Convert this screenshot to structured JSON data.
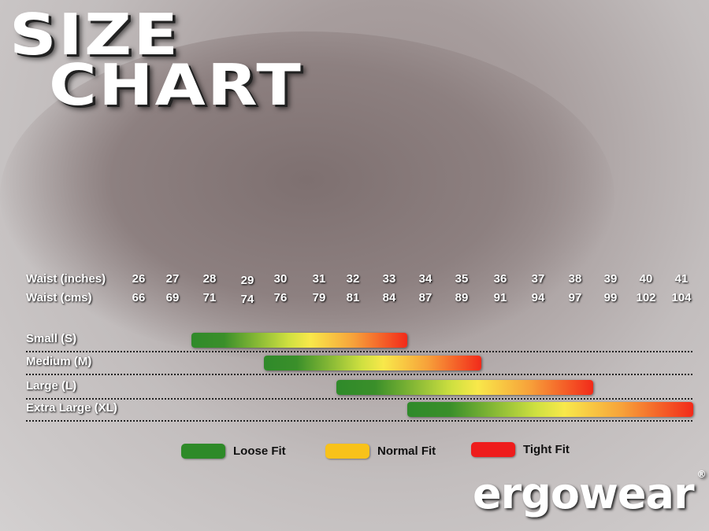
{
  "title": {
    "line1": "SIZE",
    "line2": "CHART"
  },
  "chart_data": {
    "type": "range-bar",
    "row_headers": [
      "Waist (inches)",
      "Waist (cms)"
    ],
    "waist_inches": [
      26,
      27,
      28,
      29,
      30,
      31,
      32,
      33,
      34,
      35,
      36,
      37,
      38,
      39,
      40,
      41
    ],
    "waist_cms": [
      66,
      69,
      71,
      74,
      76,
      79,
      81,
      84,
      87,
      89,
      91,
      94,
      97,
      99,
      102,
      104
    ],
    "sizes": [
      {
        "label": "Small (S)",
        "from_inches": 27.5,
        "to_inches": 33.5
      },
      {
        "label": "Medium (M)",
        "from_inches": 29.5,
        "to_inches": 35.5
      },
      {
        "label": "Large (L)",
        "from_inches": 31.5,
        "to_inches": 38.5
      },
      {
        "label": "Extra Large (XL)",
        "from_inches": 33.5,
        "to_inches": 41.5
      }
    ],
    "legend": [
      {
        "label": "Loose Fit",
        "color": "#2e8a28"
      },
      {
        "label": "Normal Fit",
        "color": "#f8c21a"
      },
      {
        "label": "Tight Fit",
        "color": "#ee1c1c"
      }
    ]
  },
  "brand": {
    "logo": "ergowear",
    "registered": "®"
  }
}
